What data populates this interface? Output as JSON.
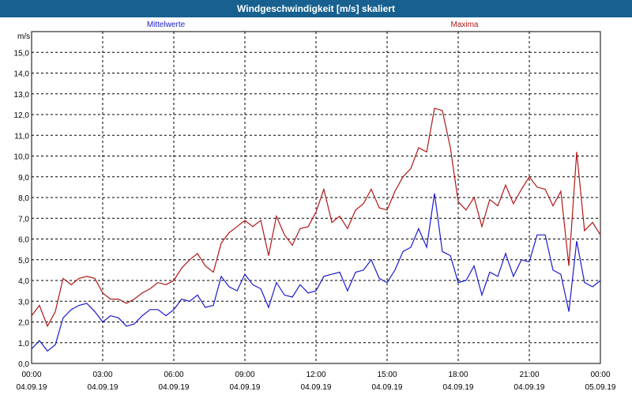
{
  "window": {
    "title": "Windgeschwindigkeit [m/s] skaliert"
  },
  "chart_data": {
    "type": "line",
    "title": "Windgeschwindigkeit [m/s] skaliert",
    "ylabel": "m/s",
    "xlabel": "",
    "ylim": [
      0,
      16
    ],
    "xlim": [
      0,
      24
    ],
    "y_ticks": [
      0,
      1,
      2,
      3,
      4,
      5,
      6,
      7,
      8,
      9,
      10,
      11,
      12,
      13,
      14,
      15
    ],
    "y_tick_labels": [
      "0,0",
      "1,0",
      "2,0",
      "3,0",
      "4,0",
      "5,0",
      "6,0",
      "7,0",
      "8,0",
      "9,0",
      "10,0",
      "11,0",
      "12,0",
      "13,0",
      "14,0",
      "15,0"
    ],
    "x_ticks": [
      0,
      3,
      6,
      9,
      12,
      15,
      18,
      21,
      24
    ],
    "x_tick_labels": [
      {
        "time": "00:00",
        "date": "04.09.19"
      },
      {
        "time": "03:00",
        "date": "04.09.19"
      },
      {
        "time": "06:00",
        "date": "04.09.19"
      },
      {
        "time": "09:00",
        "date": "04.09.19"
      },
      {
        "time": "12:00",
        "date": "04.09.19"
      },
      {
        "time": "15:00",
        "date": "04.09.19"
      },
      {
        "time": "18:00",
        "date": "04.09.19"
      },
      {
        "time": "21:00",
        "date": "04.09.19"
      },
      {
        "time": "00:00",
        "date": "05.09.19"
      }
    ],
    "grid": true,
    "legend_position": "top",
    "series": [
      {
        "name": "Mittelwerte",
        "color": "#1a1acc",
        "x": [
          0,
          0.33,
          0.67,
          1,
          1.33,
          1.67,
          2,
          2.33,
          2.67,
          3,
          3.33,
          3.67,
          4,
          4.33,
          4.67,
          5,
          5.33,
          5.67,
          6,
          6.33,
          6.67,
          7,
          7.33,
          7.67,
          8,
          8.33,
          8.67,
          9,
          9.33,
          9.67,
          10,
          10.33,
          10.67,
          11,
          11.33,
          11.67,
          12,
          12.33,
          12.67,
          13,
          13.33,
          13.67,
          14,
          14.33,
          14.67,
          15,
          15.33,
          15.67,
          16,
          16.33,
          16.67,
          17,
          17.33,
          17.67,
          18,
          18.33,
          18.67,
          19,
          19.33,
          19.67,
          20,
          20.33,
          20.67,
          21,
          21.33,
          21.67,
          22,
          22.33,
          22.67,
          23,
          23.33,
          23.67,
          24
        ],
        "y": [
          0.7,
          1.1,
          0.6,
          0.9,
          2.2,
          2.6,
          2.8,
          2.9,
          2.5,
          2.0,
          2.3,
          2.2,
          1.8,
          1.9,
          2.3,
          2.6,
          2.6,
          2.3,
          2.6,
          3.1,
          3.0,
          3.3,
          2.7,
          2.8,
          4.2,
          3.7,
          3.5,
          4.3,
          3.8,
          3.6,
          2.7,
          3.9,
          3.3,
          3.2,
          3.8,
          3.4,
          3.5,
          4.2,
          4.3,
          4.4,
          3.5,
          4.4,
          4.5,
          5.0,
          4.1,
          3.9,
          4.5,
          5.4,
          5.6,
          6.5,
          5.6,
          8.2,
          5.4,
          5.2,
          3.9,
          4.0,
          4.7,
          3.3,
          4.4,
          4.2,
          5.3,
          4.2,
          5.0,
          4.9,
          6.2,
          6.2,
          4.5,
          4.3,
          2.5,
          5.9,
          3.9,
          3.7,
          4.0
        ]
      },
      {
        "name": "Maxima",
        "color": "#b01818",
        "x": [
          0,
          0.33,
          0.67,
          1,
          1.33,
          1.67,
          2,
          2.33,
          2.67,
          3,
          3.33,
          3.67,
          4,
          4.33,
          4.67,
          5,
          5.33,
          5.67,
          6,
          6.33,
          6.67,
          7,
          7.33,
          7.67,
          8,
          8.33,
          8.67,
          9,
          9.33,
          9.67,
          10,
          10.33,
          10.67,
          11,
          11.33,
          11.67,
          12,
          12.33,
          12.67,
          13,
          13.33,
          13.67,
          14,
          14.33,
          14.67,
          15,
          15.33,
          15.67,
          16,
          16.33,
          16.67,
          17,
          17.33,
          17.67,
          18,
          18.33,
          18.67,
          19,
          19.33,
          19.67,
          20,
          20.33,
          20.67,
          21,
          21.33,
          21.67,
          22,
          22.33,
          22.67,
          23,
          23.33,
          23.67,
          24
        ],
        "y": [
          2.3,
          2.8,
          1.8,
          2.5,
          4.1,
          3.8,
          4.1,
          4.2,
          4.1,
          3.4,
          3.1,
          3.1,
          2.9,
          3.1,
          3.4,
          3.6,
          3.9,
          3.8,
          4.0,
          4.6,
          5.0,
          5.3,
          4.7,
          4.4,
          5.8,
          6.3,
          6.6,
          6.9,
          6.6,
          6.9,
          5.2,
          7.1,
          6.2,
          5.7,
          6.5,
          6.6,
          7.3,
          8.4,
          6.8,
          7.1,
          6.5,
          7.4,
          7.7,
          8.4,
          7.5,
          7.4,
          8.3,
          9.0,
          9.4,
          10.4,
          10.2,
          12.3,
          12.2,
          10.4,
          7.8,
          7.4,
          8.0,
          6.6,
          7.9,
          7.6,
          8.6,
          7.7,
          8.4,
          9.0,
          8.5,
          8.4,
          7.6,
          8.3,
          4.7,
          10.2,
          6.4,
          6.8,
          6.2
        ]
      }
    ]
  }
}
